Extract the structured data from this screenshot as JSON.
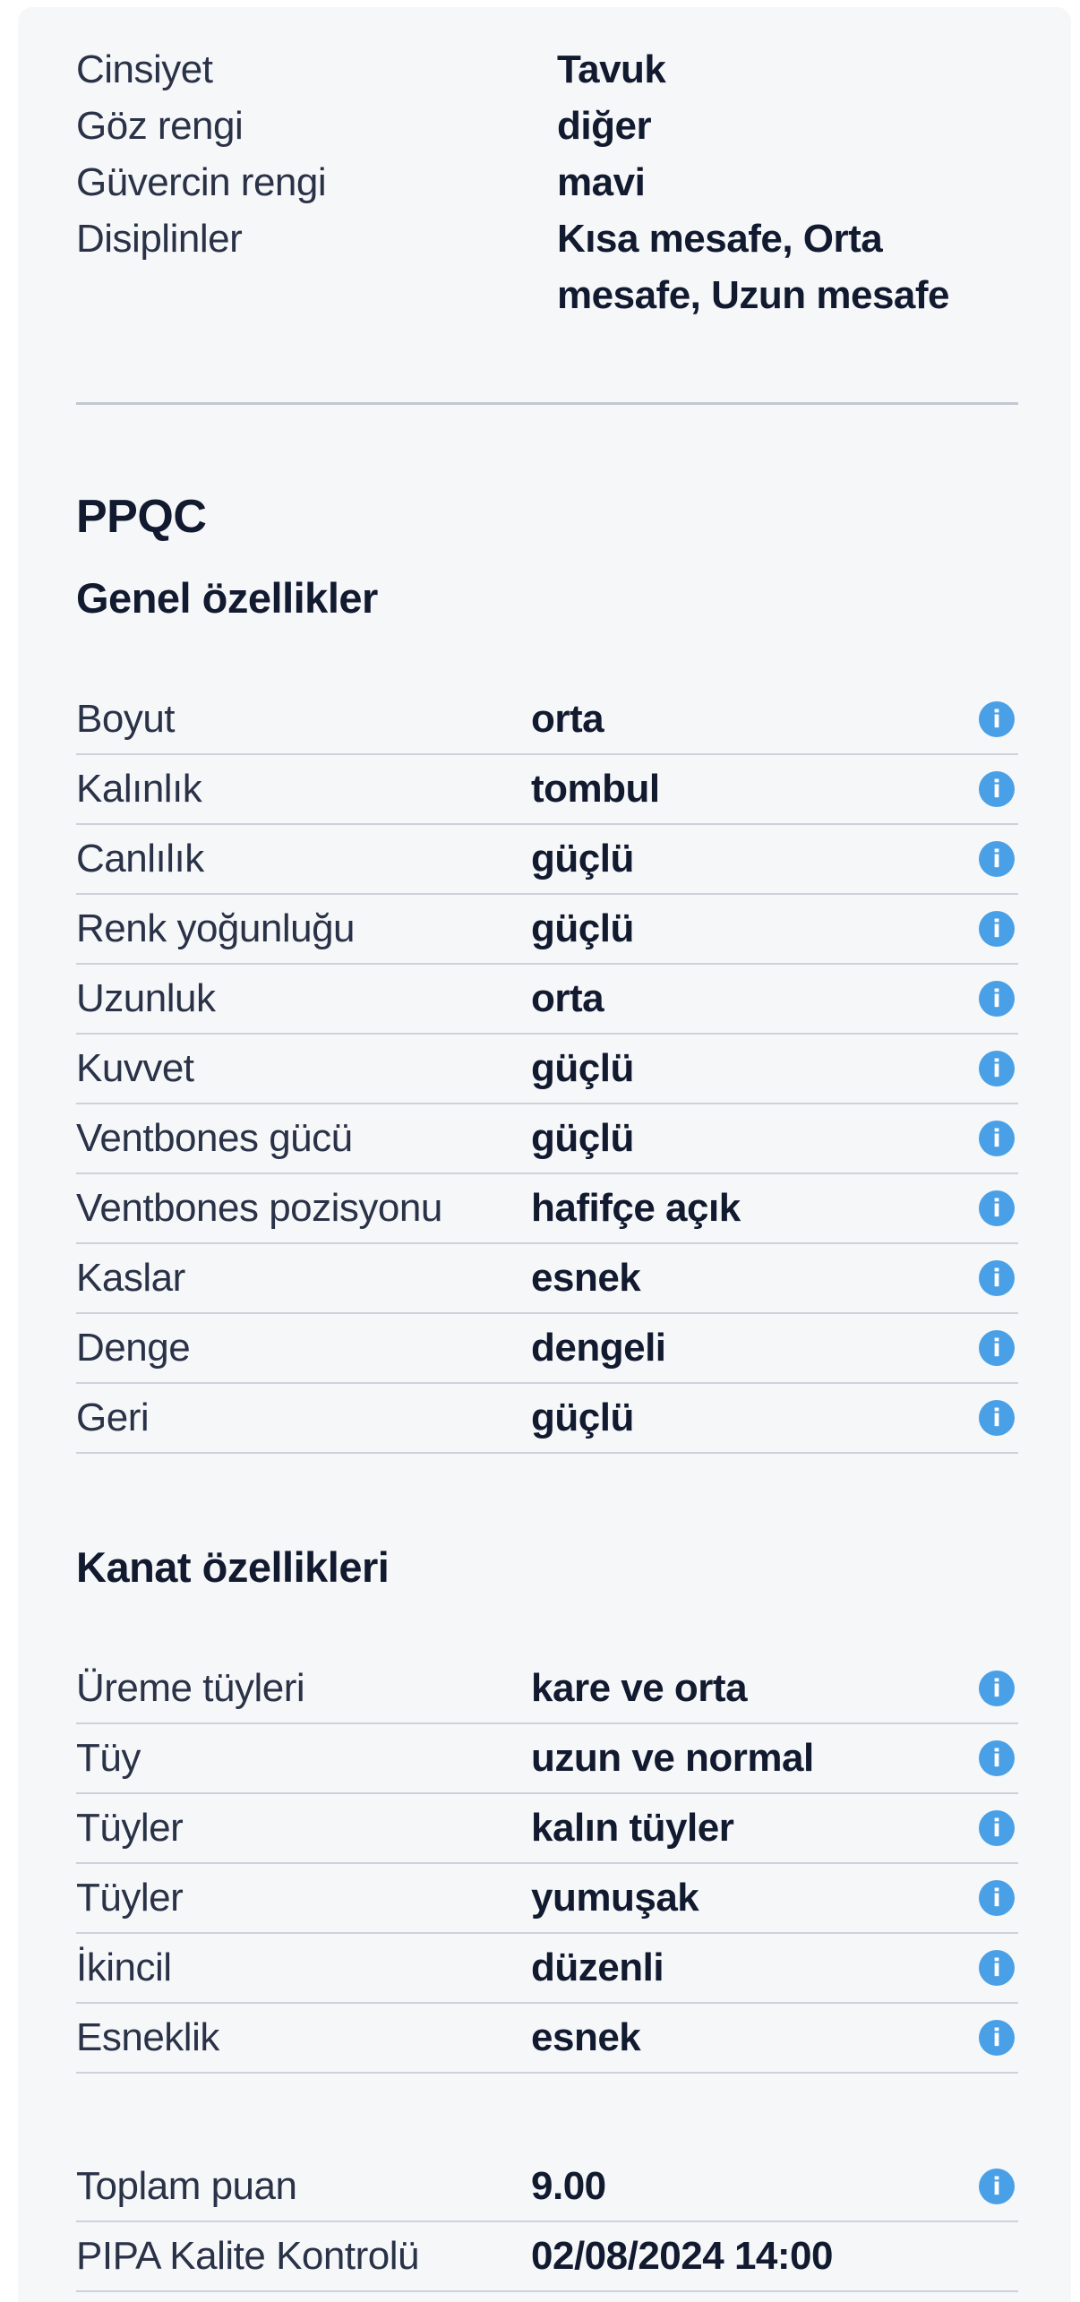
{
  "colors": {
    "page_bg": "#ffffff",
    "card_bg": "#f6f7f9",
    "label_text": "#2a3247",
    "value_text": "#121a30",
    "divider": "#cdd1da",
    "section_divider": "#c2c7d1",
    "info_icon_bg": "#4aa0e6",
    "info_icon_glyph": "#ffffff"
  },
  "icons": {
    "info": "i"
  },
  "details": {
    "items": [
      {
        "label": "Cinsiyet",
        "value": "Tavuk"
      },
      {
        "label": "Göz rengi",
        "value": "diğer"
      },
      {
        "label": "Güvercin rengi",
        "value": "mavi"
      },
      {
        "label": "Disiplinler",
        "value": "Kısa mesafe, Orta mesafe, Uzun mesafe"
      }
    ]
  },
  "ppqc": {
    "title": "PPQC",
    "sections": [
      {
        "heading": "Genel özellikler",
        "rows": [
          {
            "label": "Boyut",
            "value": "orta"
          },
          {
            "label": "Kalınlık",
            "value": "tombul"
          },
          {
            "label": "Canlılık",
            "value": "güçlü"
          },
          {
            "label": "Renk yoğunluğu",
            "value": "güçlü"
          },
          {
            "label": "Uzunluk",
            "value": "orta"
          },
          {
            "label": "Kuvvet",
            "value": "güçlü"
          },
          {
            "label": "Ventbones gücü",
            "value": "güçlü"
          },
          {
            "label": "Ventbones pozisyonu",
            "value": "hafifçe açık"
          },
          {
            "label": "Kaslar",
            "value": "esnek"
          },
          {
            "label": "Denge",
            "value": "dengeli"
          },
          {
            "label": "Geri",
            "value": "güçlü"
          }
        ]
      },
      {
        "heading": "Kanat özellikleri",
        "rows": [
          {
            "label": "Üreme tüyleri",
            "value": "kare ve orta"
          },
          {
            "label": "Tüy",
            "value": "uzun ve normal"
          },
          {
            "label": "Tüyler",
            "value": "kalın tüyler"
          },
          {
            "label": "Tüyler",
            "value": "yumuşak"
          },
          {
            "label": "İkincil",
            "value": "düzenli"
          },
          {
            "label": "Esneklik",
            "value": "esnek"
          }
        ]
      }
    ],
    "summary": {
      "rows": [
        {
          "label": "Toplam puan",
          "value": "9.00",
          "info": true
        },
        {
          "label": "PIPA Kalite Kontrolü",
          "value": "02/08/2024 14:00",
          "info": false
        }
      ]
    }
  }
}
